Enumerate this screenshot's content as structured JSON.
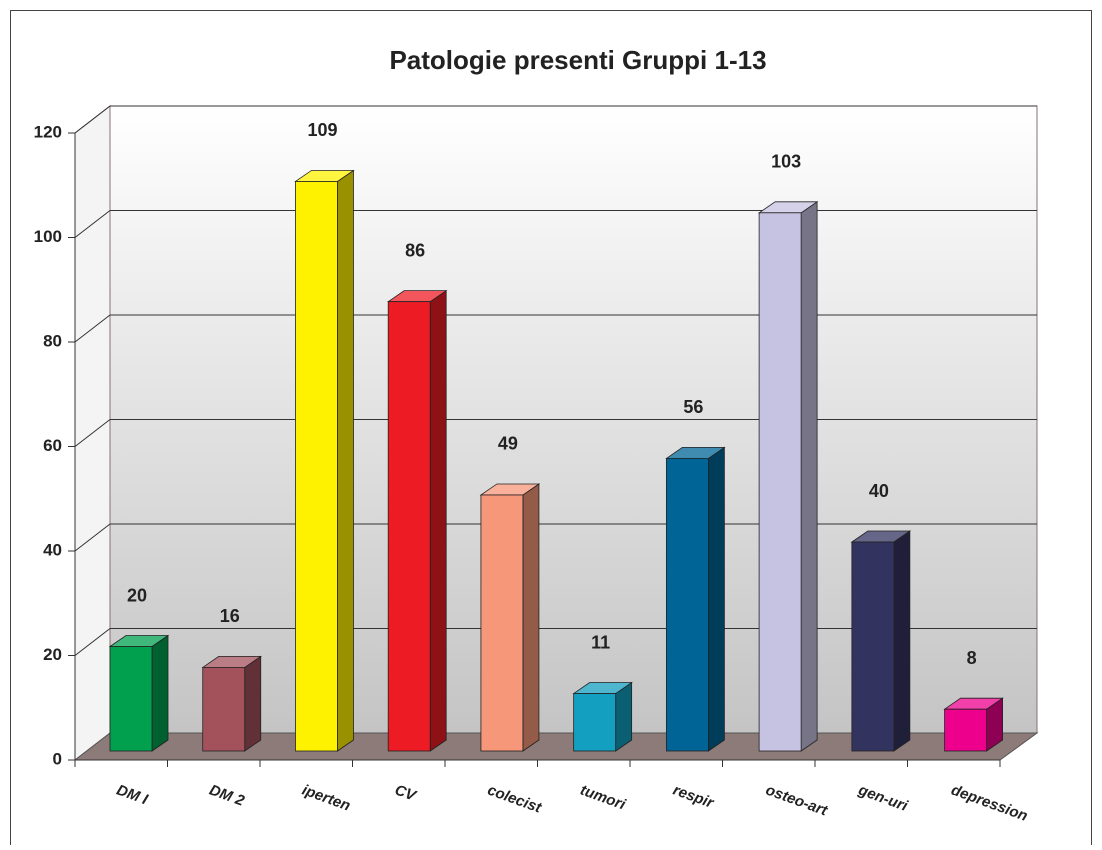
{
  "chart_data": {
    "type": "bar3d",
    "title": "Patologie presenti Gruppi 1-13",
    "categories": [
      "DM I",
      "DM 2",
      "iperten",
      "CV",
      "colecist",
      "tumori",
      "respir",
      "osteo-art",
      "gen-uri",
      "depression"
    ],
    "values": [
      20,
      16,
      109,
      86,
      49,
      11,
      56,
      103,
      40,
      8
    ],
    "colors": [
      "#00a04f",
      "#a3525c",
      "#fff200",
      "#ed1c24",
      "#f7977a",
      "#139fbf",
      "#006596",
      "#c6c2e1",
      "#333360",
      "#ec008c"
    ],
    "ylim": [
      0,
      120
    ],
    "yticks": [
      0,
      20,
      40,
      60,
      80,
      100,
      120
    ],
    "grid": true
  }
}
